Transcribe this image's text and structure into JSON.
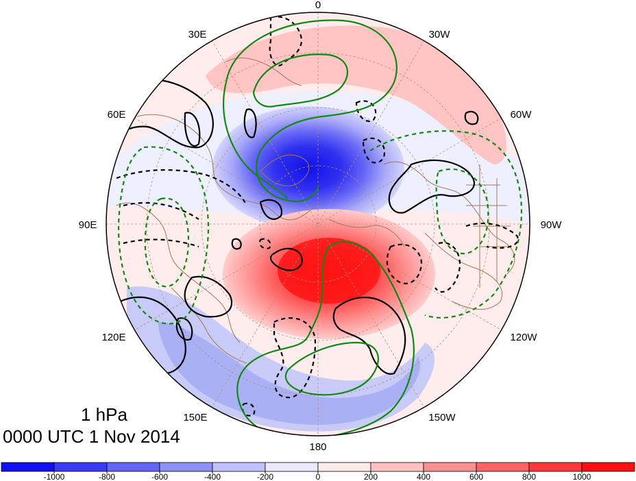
{
  "map": {
    "projection": "north-polar-stereographic",
    "longitude_labels": {
      "top": "0",
      "upper_left": "30E",
      "upper_right": "30W",
      "left_upper": "60E",
      "right_upper": "60W",
      "left": "90E",
      "right": "90W",
      "left_lower": "120E",
      "right_lower": "120W",
      "lower_left": "150E",
      "lower_right": "150W",
      "bottom": "180"
    },
    "colors": {
      "strong_negative": "#1414f0",
      "weak_negative": "#eef0ff",
      "weak_positive": "#ffecec",
      "strong_positive": "#ff1010",
      "solid_contour": "#000000",
      "green_contour": "#118811",
      "coastline": "#a07858",
      "graticule": "#b09070"
    }
  },
  "title": {
    "level": "1 hPa",
    "time": "0000 UTC 1 Nov 2014"
  },
  "colorbar": {
    "ticks": [
      "-1000",
      "-800",
      "-600",
      "-400",
      "-200",
      "0",
      "200",
      "400",
      "600",
      "800",
      "1000"
    ],
    "colors": [
      "#1010f0",
      "#3a3af4",
      "#6464f8",
      "#9090fa",
      "#c0c0fc",
      "#eaeafe",
      "#ffeaea",
      "#ffc0c0",
      "#ff9090",
      "#ff6464",
      "#ff3a3a",
      "#ff1010"
    ]
  }
}
